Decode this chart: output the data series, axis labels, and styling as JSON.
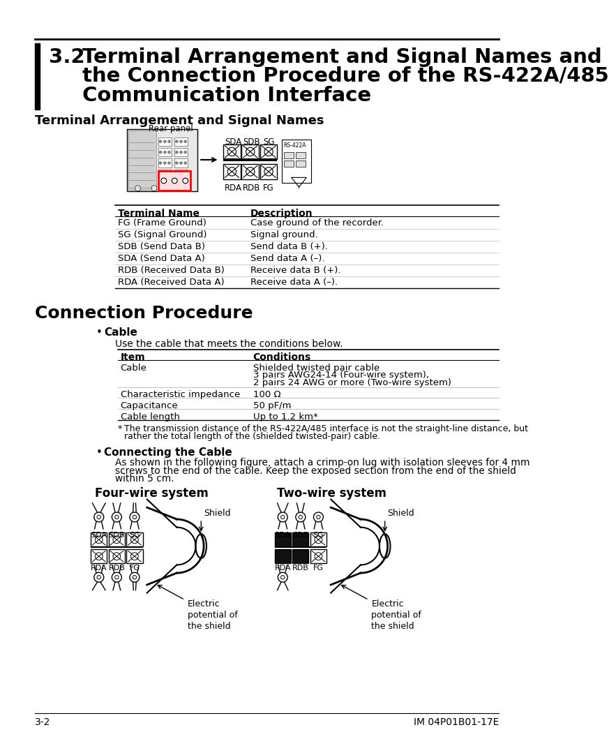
{
  "page_bg": "#ffffff",
  "section_number": "3.2",
  "section_title_line1": "Terminal Arrangement and Signal Names and",
  "section_title_line2": "the Connection Procedure of the RS-422A/485",
  "section_title_line3": "Communication Interface",
  "subsection1_title": "Terminal Arrangement and Signal Names",
  "rear_panel_label": "Rear panel",
  "terminal_table_headers": [
    "Terminal Name",
    "Description"
  ],
  "terminal_table_rows": [
    [
      "FG (Frame Ground)",
      "Case ground of the recorder."
    ],
    [
      "SG (Signal Ground)",
      "Signal ground."
    ],
    [
      "SDB (Send Data B)",
      "Send data B (+)."
    ],
    [
      "SDA (Send Data A)",
      "Send data A (–)."
    ],
    [
      "RDB (Received Data B)",
      "Receive data B (+)."
    ],
    [
      "RDA (Received Data A)",
      "Receive data A (–)."
    ]
  ],
  "section2_title": "Connection Procedure",
  "bullet1_title": "Cable",
  "cable_intro": "Use the cable that meets the conditions below.",
  "cable_table_headers": [
    "Item",
    "Conditions"
  ],
  "footnote_line1": "    The transmission distance of the RS-422A/485 interface is not the straight-line distance, but",
  "footnote_line2": "    rather the total length of the (shielded twisted-pair) cable.",
  "bullet2_title": "Connecting the Cable",
  "connecting_line1": "As shown in the following figure, attach a crimp-on lug with isolation sleeves for 4 mm",
  "connecting_line2": "screws to the end of the cable. Keep the exposed section from the end of the shield",
  "connecting_line3": "within 5 cm.",
  "four_wire_label": "Four-wire system",
  "two_wire_label": "Two-wire system",
  "page_footer_left": "3-2",
  "page_footer_right": "IM 04P01B01-17E"
}
